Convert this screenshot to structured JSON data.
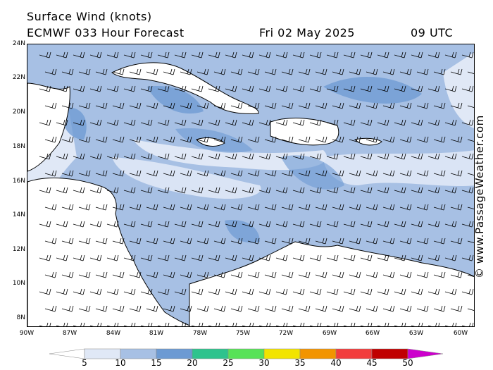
{
  "header": {
    "title": "Surface Wind (knots)",
    "model": "ECMWF 033 Hour Forecast",
    "date": "Fri 02 May 2025",
    "time": "09 UTC"
  },
  "axes": {
    "lat_labels": [
      "24N",
      "22N",
      "20N",
      "18N",
      "16N",
      "14N",
      "12N",
      "10N",
      "8N"
    ],
    "lon_labels": [
      "90W",
      "87W",
      "84W",
      "81W",
      "78W",
      "75W",
      "72W",
      "69W",
      "66W",
      "63W",
      "60W"
    ]
  },
  "colorbar": {
    "labels": [
      "5",
      "10",
      "15",
      "20",
      "25",
      "30",
      "35",
      "40",
      "45",
      "50"
    ],
    "colors": [
      "#ffffff",
      "#e0e8f6",
      "#a7c0e4",
      "#6c9ad3",
      "#2ec38d",
      "#58e258",
      "#f2e400",
      "#f29400",
      "#f23c3c",
      "#c00000",
      "#cc00cc"
    ]
  },
  "map_colors": {
    "water_base": "#a7c0e4",
    "light_band": "#e0e8f6",
    "strong_band": "#6c9ad3",
    "land": "#ffffff"
  },
  "copyright": "© www.PassageWeather.com"
}
